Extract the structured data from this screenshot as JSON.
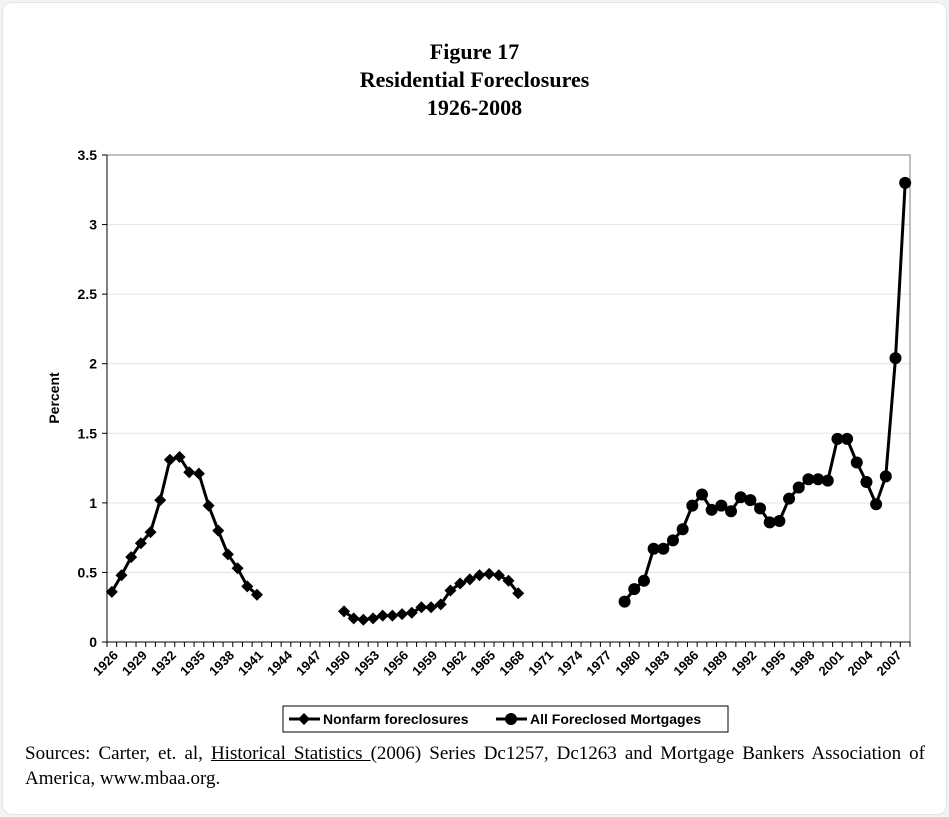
{
  "chart_data": {
    "type": "line",
    "title": "Figure 17",
    "subtitle_lines": [
      "Residential Foreclosures",
      "1926-2008"
    ],
    "xlabel": "",
    "ylabel": "Percent",
    "ylim": [
      0,
      3.5
    ],
    "xlim": [
      1926,
      2008
    ],
    "y_ticks": [
      "0",
      "0.5",
      "1",
      "1.5",
      "2",
      "2.5",
      "3",
      "3.5"
    ],
    "x_ticks": [
      "1926",
      "1929",
      "1932",
      "1935",
      "1938",
      "1941",
      "1944",
      "1947",
      "1950",
      "1953",
      "1956",
      "1959",
      "1962",
      "1965",
      "1968",
      "1971",
      "1974",
      "1977",
      "1980",
      "1983",
      "1986",
      "1989",
      "1992",
      "1995",
      "1998",
      "2001",
      "2004",
      "2007"
    ],
    "grid": true,
    "legend_position": "bottom",
    "series": [
      {
        "name": "Nonfarm foreclosures",
        "marker": "diamond",
        "color": "#000000",
        "segments": [
          [
            [
              1926,
              0.36
            ],
            [
              1927,
              0.48
            ],
            [
              1928,
              0.61
            ],
            [
              1929,
              0.71
            ],
            [
              1930,
              0.79
            ],
            [
              1931,
              1.02
            ],
            [
              1932,
              1.31
            ],
            [
              1933,
              1.33
            ],
            [
              1934,
              1.22
            ],
            [
              1935,
              1.21
            ],
            [
              1936,
              0.98
            ],
            [
              1937,
              0.8
            ],
            [
              1938,
              0.63
            ],
            [
              1939,
              0.53
            ],
            [
              1940,
              0.4
            ],
            [
              1941,
              0.34
            ]
          ],
          [
            [
              1950,
              0.22
            ],
            [
              1951,
              0.17
            ],
            [
              1952,
              0.16
            ],
            [
              1953,
              0.17
            ],
            [
              1954,
              0.19
            ],
            [
              1955,
              0.19
            ],
            [
              1956,
              0.2
            ],
            [
              1957,
              0.21
            ],
            [
              1958,
              0.25
            ],
            [
              1959,
              0.25
            ],
            [
              1960,
              0.27
            ],
            [
              1961,
              0.37
            ],
            [
              1962,
              0.42
            ],
            [
              1963,
              0.45
            ],
            [
              1964,
              0.48
            ],
            [
              1965,
              0.49
            ],
            [
              1966,
              0.48
            ],
            [
              1967,
              0.44
            ],
            [
              1968,
              0.35
            ]
          ]
        ]
      },
      {
        "name": "All Foreclosed Mortgages",
        "marker": "circle",
        "color": "#000000",
        "segments": [
          [
            [
              1979,
              0.29
            ],
            [
              1980,
              0.38
            ],
            [
              1981,
              0.44
            ],
            [
              1982,
              0.67
            ],
            [
              1983,
              0.67
            ],
            [
              1984,
              0.73
            ],
            [
              1985,
              0.81
            ],
            [
              1986,
              0.98
            ],
            [
              1987,
              1.06
            ],
            [
              1988,
              0.95
            ],
            [
              1989,
              0.98
            ],
            [
              1990,
              0.94
            ],
            [
              1991,
              1.04
            ],
            [
              1992,
              1.02
            ],
            [
              1993,
              0.96
            ],
            [
              1994,
              0.86
            ],
            [
              1995,
              0.87
            ],
            [
              1996,
              1.03
            ],
            [
              1997,
              1.11
            ],
            [
              1998,
              1.17
            ],
            [
              1999,
              1.17
            ],
            [
              2000,
              1.16
            ],
            [
              2001,
              1.46
            ],
            [
              2002,
              1.46
            ],
            [
              2003,
              1.29
            ],
            [
              2004,
              1.15
            ],
            [
              2005,
              0.99
            ],
            [
              2006,
              1.19
            ],
            [
              2007,
              2.04
            ],
            [
              2008,
              3.3
            ]
          ]
        ]
      }
    ]
  },
  "sources": {
    "prefix": "Sources: Carter, et. al, ",
    "book": "Historical Statistics ",
    "suffix": " (2006) Series Dc1257, Dc1263 and Mortgage Bankers Association of America, www.mbaa.org."
  }
}
